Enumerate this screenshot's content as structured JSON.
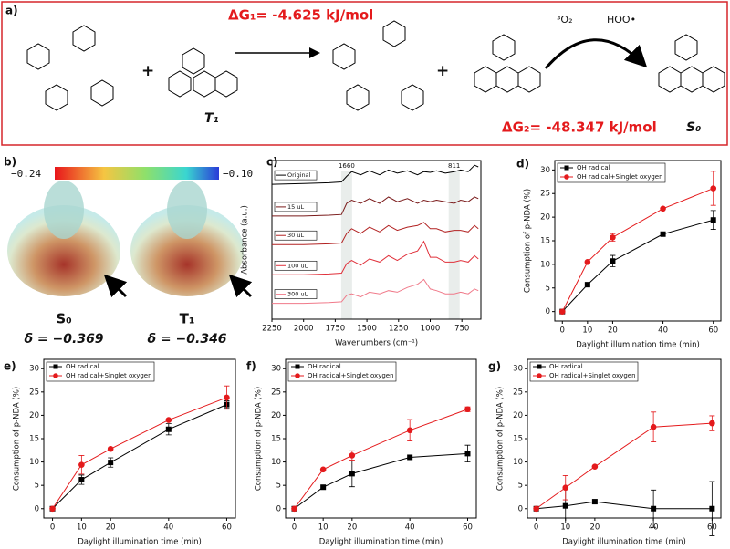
{
  "panel_a": {
    "label": "a)",
    "dg1": "ΔG₁= -4.625 kJ/mol",
    "dg2": "ΔG₂= -48.347 kJ/mol",
    "t1": "T₁",
    "s0": "S₀",
    "o2": "³O₂",
    "hoo": "HOO•"
  },
  "panel_b": {
    "label": "b)",
    "scale_min": "−0.24",
    "scale_max": "−0.10",
    "s0": "S₀",
    "t1": "T₁",
    "delta_s0": "δ = −0.369",
    "delta_t1": "δ = −0.346"
  },
  "chart_data": [
    {
      "type": "spectrum",
      "panel": "c)",
      "xlabel": "Wavenumbers (cm⁻¹)",
      "ylabel": "Absorbance (a.u.)",
      "xlim": [
        2250,
        600
      ],
      "xticks": [
        2250,
        2000,
        1750,
        1500,
        1250,
        1000,
        750
      ],
      "ylim": [
        0,
        10
      ],
      "annotations": [
        {
          "x": 1660,
          "text": "1660"
        },
        {
          "x": 811,
          "text": "811"
        }
      ],
      "x": [
        2250,
        2000,
        1800,
        1700,
        1660,
        1620,
        1550,
        1480,
        1400,
        1330,
        1260,
        1180,
        1100,
        1050,
        1000,
        950,
        880,
        811,
        760,
        700,
        650,
        620
      ],
      "series": [
        {
          "name": "Original",
          "color": "#000000",
          "values": [
            8.5,
            8.55,
            8.6,
            8.65,
            9.0,
            9.3,
            9.1,
            9.35,
            9.1,
            9.4,
            9.2,
            9.35,
            9.1,
            9.3,
            9.25,
            9.35,
            9.2,
            9.3,
            9.4,
            9.3,
            9.7,
            9.6
          ]
        },
        {
          "name": "15 uL",
          "color": "#7a1a1a",
          "values": [
            6.5,
            6.5,
            6.55,
            6.6,
            7.3,
            7.5,
            7.3,
            7.6,
            7.3,
            7.7,
            7.4,
            7.6,
            7.3,
            7.5,
            7.4,
            7.5,
            7.4,
            7.3,
            7.5,
            7.4,
            7.7,
            7.6
          ]
        },
        {
          "name": "30 uL",
          "color": "#b22222",
          "values": [
            4.7,
            4.7,
            4.75,
            4.8,
            5.4,
            5.7,
            5.4,
            5.8,
            5.5,
            5.9,
            5.6,
            5.8,
            5.9,
            6.1,
            5.7,
            5.7,
            5.5,
            5.6,
            5.6,
            5.5,
            5.9,
            5.7
          ]
        },
        {
          "name": "100 uL",
          "color": "#e0303a",
          "values": [
            2.8,
            2.8,
            2.85,
            2.9,
            3.5,
            3.7,
            3.4,
            3.8,
            3.6,
            4.0,
            3.7,
            4.1,
            4.3,
            4.9,
            3.9,
            3.9,
            3.6,
            3.6,
            3.7,
            3.6,
            4.0,
            3.8
          ]
        },
        {
          "name": "300 uL",
          "color": "#f07a8a",
          "values": [
            1.0,
            1.0,
            1.05,
            1.1,
            1.5,
            1.6,
            1.4,
            1.7,
            1.6,
            1.8,
            1.7,
            2.0,
            2.2,
            2.5,
            1.9,
            1.8,
            1.6,
            1.6,
            1.7,
            1.6,
            1.9,
            1.8
          ]
        }
      ]
    },
    {
      "type": "line",
      "panel": "d)",
      "xlabel": "Daylight illumination time (min)",
      "ylabel": "Consumption of p-NDA (%)",
      "x": [
        0,
        10,
        20,
        40,
        60
      ],
      "xlim": [
        -3,
        63
      ],
      "xticks": [
        0,
        10,
        20,
        40,
        60
      ],
      "ylim": [
        -2,
        32
      ],
      "yticks": [
        0,
        5,
        10,
        15,
        20,
        25,
        30
      ],
      "series": [
        {
          "name": "OH radical",
          "color": "#000000",
          "marker": "square",
          "values": [
            0,
            5.7,
            10.7,
            16.4,
            19.4
          ],
          "errors": [
            null,
            null,
            1.2,
            null,
            2.0
          ]
        },
        {
          "name": "OH radical+Singlet oxygen",
          "color": "#e41a1c",
          "marker": "circle",
          "values": [
            0,
            10.5,
            15.7,
            21.8,
            26.1
          ],
          "errors": [
            null,
            null,
            0.8,
            null,
            3.6
          ]
        }
      ]
    },
    {
      "type": "line",
      "panel": "e)",
      "xlabel": "Daylight illumination time (min)",
      "ylabel": "Consumption of p-NDA (%)",
      "x": [
        0,
        10,
        20,
        40,
        60
      ],
      "xlim": [
        -3,
        63
      ],
      "xticks": [
        0,
        10,
        20,
        40,
        60
      ],
      "ylim": [
        -2,
        32
      ],
      "yticks": [
        0,
        5,
        10,
        15,
        20,
        25,
        30
      ],
      "series": [
        {
          "name": "OH radical",
          "color": "#000000",
          "marker": "square",
          "values": [
            0,
            6.2,
            9.9,
            17.0,
            22.3
          ],
          "errors": [
            null,
            1.0,
            1.0,
            1.2,
            0.8
          ]
        },
        {
          "name": "OH radical+Singlet oxygen",
          "color": "#e41a1c",
          "marker": "circle",
          "values": [
            0,
            9.4,
            12.8,
            19.0,
            23.8
          ],
          "errors": [
            null,
            2.0,
            null,
            null,
            2.5
          ]
        }
      ]
    },
    {
      "type": "line",
      "panel": "f)",
      "xlabel": "Daylight illumination time (min)",
      "ylabel": "Consumption of p-NDA (%)",
      "x": [
        0,
        10,
        20,
        40,
        60
      ],
      "xlim": [
        -3,
        63
      ],
      "xticks": [
        0,
        10,
        20,
        40,
        60
      ],
      "ylim": [
        -2,
        32
      ],
      "yticks": [
        0,
        5,
        10,
        15,
        20,
        25,
        30
      ],
      "series": [
        {
          "name": "OH radical",
          "color": "#000000",
          "marker": "square",
          "values": [
            0,
            4.6,
            7.5,
            11.0,
            11.8
          ],
          "errors": [
            null,
            null,
            2.8,
            null,
            1.8
          ]
        },
        {
          "name": "OH radical+Singlet oxygen",
          "color": "#e41a1c",
          "marker": "circle",
          "values": [
            0,
            8.4,
            11.4,
            16.8,
            21.3
          ],
          "errors": [
            null,
            null,
            1.0,
            2.3,
            0.5
          ]
        }
      ]
    },
    {
      "type": "line",
      "panel": "g)",
      "xlabel": "Daylight illumination time (min)",
      "ylabel": "Consumption of p-NDA (%)",
      "x": [
        0,
        10,
        20,
        40,
        60
      ],
      "xlim": [
        -3,
        63
      ],
      "xticks": [
        0,
        10,
        20,
        40,
        60
      ],
      "ylim": [
        -2,
        32
      ],
      "yticks": [
        0,
        5,
        10,
        15,
        20,
        25,
        30
      ],
      "series": [
        {
          "name": "OH radical",
          "color": "#000000",
          "marker": "square",
          "values": [
            0,
            0.6,
            1.5,
            0,
            0
          ],
          "errors": [
            null,
            3.7,
            null,
            4.0,
            5.8
          ]
        },
        {
          "name": "OH radical+Singlet oxygen",
          "color": "#e41a1c",
          "marker": "circle",
          "values": [
            0,
            4.5,
            9.0,
            17.5,
            18.3
          ],
          "errors": [
            null,
            2.6,
            null,
            3.2,
            1.6
          ]
        }
      ]
    }
  ]
}
